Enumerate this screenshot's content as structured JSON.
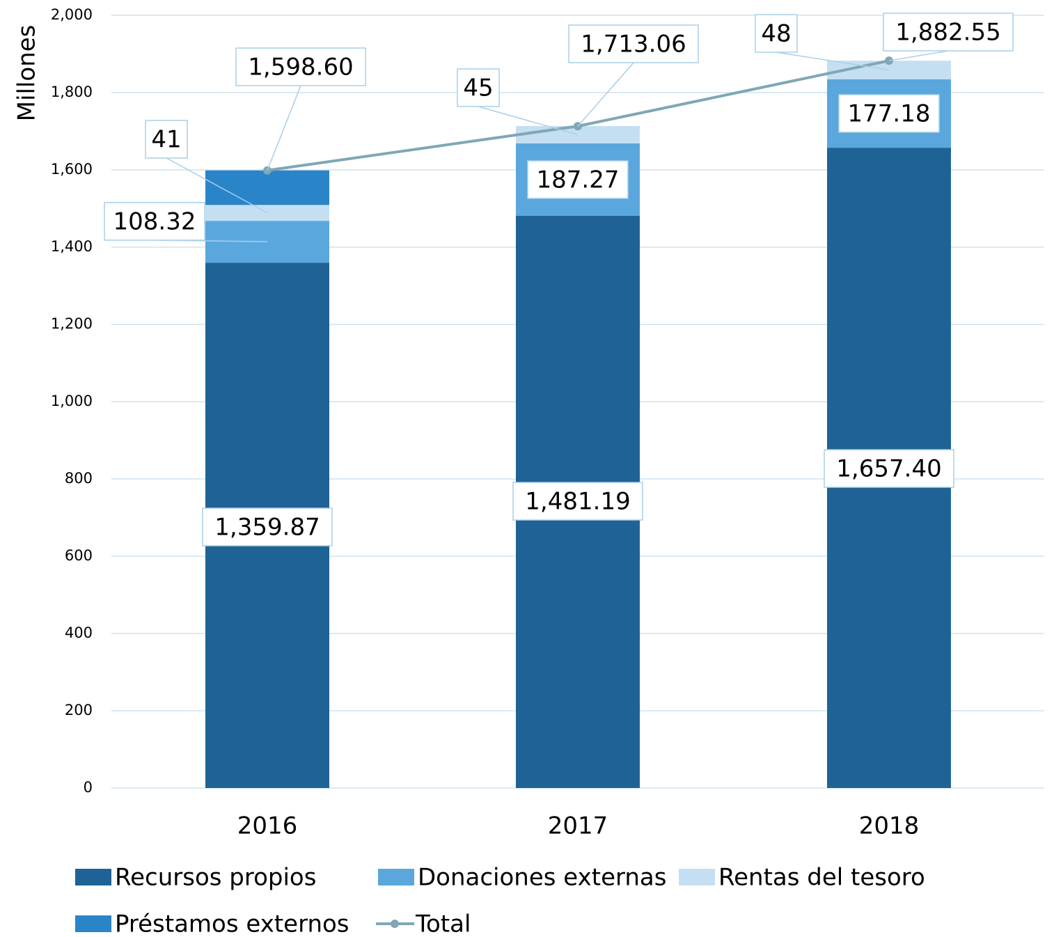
{
  "chart_data": {
    "type": "bar",
    "y_label": "Millones",
    "categories": [
      "2016",
      "2017",
      "2018"
    ],
    "ylim": [
      0,
      2000
    ],
    "yticks": [
      0,
      200,
      400,
      600,
      800,
      {
        "value": 1000,
        "label": "1,000"
      },
      {
        "value": 1200,
        "label": "1,200"
      },
      {
        "value": 1400,
        "label": "1,400"
      },
      {
        "value": 1600,
        "label": "1,600"
      },
      {
        "value": 1800,
        "label": "1,800"
      },
      {
        "value": 2000,
        "label": "2,000"
      }
    ],
    "grid": true,
    "series": [
      {
        "name": "Recursos propios",
        "color": "#1f6396",
        "values": [
          1359.87,
          1481.19,
          1657.4
        ],
        "value_labels": [
          "1,359.87",
          "1,481.19",
          "1,657.40"
        ]
      },
      {
        "name": "Donaciones externas",
        "color": "#5aa7de",
        "values": [
          108.32,
          187.27,
          177.18
        ]
      },
      {
        "name": "Rentas del tesoro",
        "color": "#c5dff2",
        "values": [
          41,
          45,
          48
        ]
      },
      {
        "name": "Préstamos externos",
        "color": "#2a84c8",
        "values": [
          89.41,
          0,
          0
        ]
      },
      {
        "name": "Total",
        "type": "line",
        "color": "#7fa7b5",
        "values": [
          1598.6,
          1713.06,
          1882.55
        ],
        "value_labels": [
          "1,598.60",
          "1,713.06",
          "1,882.55"
        ]
      }
    ]
  }
}
